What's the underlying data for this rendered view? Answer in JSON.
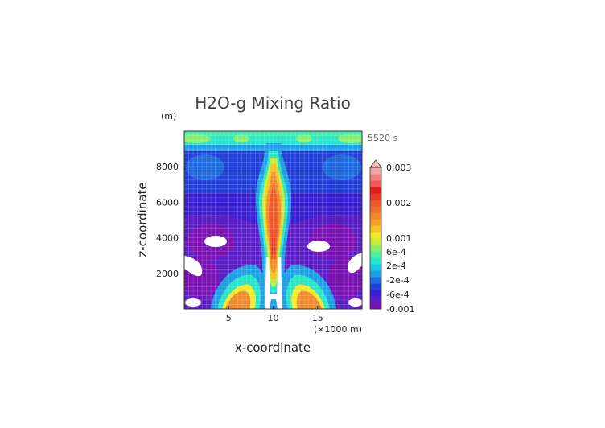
{
  "chart_data": {
    "type": "heatmap",
    "title": "H2O-g Mixing Ratio",
    "time_label": "5520 s",
    "xlabel": "x-coordinate",
    "ylabel": "z-coordinate",
    "y_unit": "(m)",
    "x_unit": "(×1000 m)",
    "xlim": [
      0,
      20
    ],
    "ylim": [
      0,
      10000
    ],
    "x_ticks": [
      "5",
      "10",
      "15"
    ],
    "y_ticks": [
      "2000",
      "4000",
      "6000",
      "8000"
    ],
    "grid": true,
    "colorbar": {
      "placement": "right",
      "labels": [
        "0.003",
        "0.002",
        "0.001",
        "6e-4",
        "2e-4",
        "-2e-4",
        "-6e-4",
        "-0.001"
      ],
      "colors": [
        "#7a12b3",
        "#5b1ec6",
        "#3a1fd0",
        "#2240d8",
        "#1f6ce0",
        "#1f9fe6",
        "#19c9ea",
        "#28e6c8",
        "#4ff0a0",
        "#8af06a",
        "#c8ee3a",
        "#f2e82a",
        "#f6c42a",
        "#f4a22a",
        "#f08a2a",
        "#ee702a",
        "#ea5a2a",
        "#e63a2a",
        "#e01e1e",
        "#f05a5a",
        "#f48080",
        "#f4a6a6"
      ]
    }
  }
}
